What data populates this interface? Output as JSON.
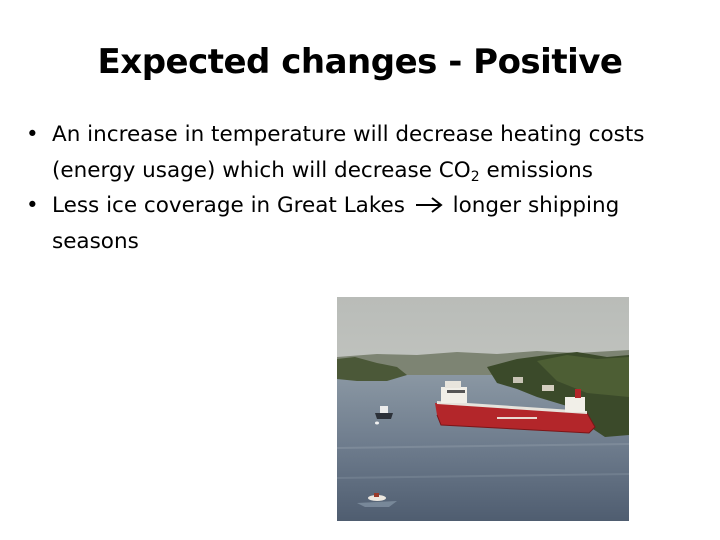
{
  "slide": {
    "title": "Expected changes - Positive",
    "bullets": [
      {
        "text_before_sub": "An increase in temperature will decrease heating costs (energy usage) which will decrease CO",
        "subscript": "2",
        "text_after_sub": " emissions"
      },
      {
        "text_before_arrow": "Less ice coverage in Great Lakes",
        "arrow_icon": "right-arrow-icon",
        "text_after_arrow": "longer shipping seasons"
      }
    ],
    "photo": {
      "subject": "red cargo freighter on a lake with islands",
      "colors": {
        "hull": "#b3262a",
        "water": "#6f7e8f",
        "sky": "#c9cbc8",
        "trees": "#3b4a2a"
      }
    }
  }
}
